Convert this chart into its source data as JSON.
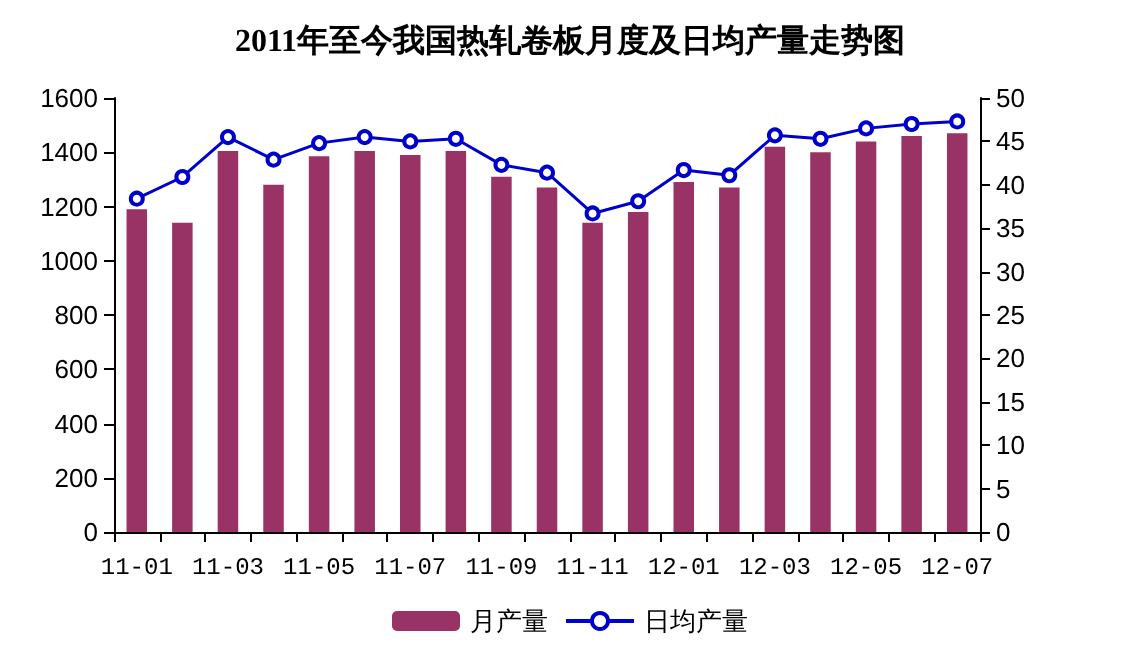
{
  "chart_data": {
    "type": "bar",
    "title": "2011年至今我国热轧卷板月度及日均产量走势图",
    "categories": [
      "11-01",
      null,
      "11-03",
      null,
      "11-05",
      null,
      "11-07",
      null,
      "11-09",
      null,
      "11-11",
      null,
      "12-01",
      null,
      "12-03",
      null,
      "12-05",
      null,
      "12-07"
    ],
    "series": [
      {
        "name": "月产量",
        "color": "#993366",
        "values": [
          1190,
          1140,
          1405,
          1280,
          1385,
          1405,
          1390,
          1405,
          1310,
          1270,
          1140,
          1180,
          1290,
          1270,
          1420,
          1400,
          1440,
          1460,
          1470
        ]
      },
      {
        "name": "日均产量",
        "type": "line",
        "axis": "y2",
        "color": "#0000cc",
        "marker": "circle",
        "values": [
          38.4,
          40.9,
          45.5,
          42.9,
          44.8,
          45.5,
          45.0,
          45.3,
          42.3,
          41.4,
          36.7,
          38.1,
          41.7,
          41.1,
          45.7,
          45.3,
          46.5,
          47.0,
          47.3
        ]
      }
    ],
    "ylim": [
      0,
      1600
    ],
    "yticks": [
      0,
      200,
      400,
      600,
      800,
      1000,
      1200,
      1400,
      1600
    ],
    "y2lim": [
      0,
      50
    ],
    "y2ticks": [
      0,
      5,
      10,
      15,
      20,
      25,
      30,
      35,
      40,
      45,
      50
    ],
    "grid": false,
    "legend": "bottom"
  }
}
